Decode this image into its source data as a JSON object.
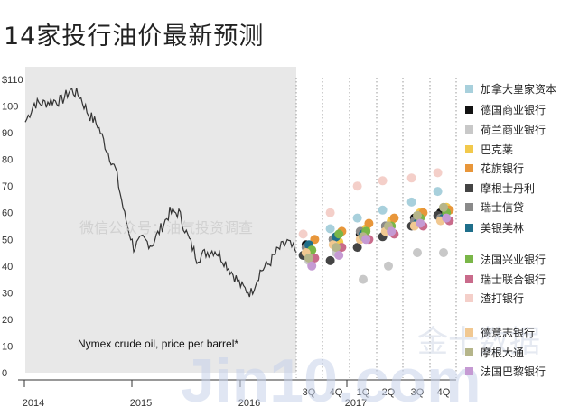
{
  "title": "14家投行油价最新预测",
  "watermarks": {
    "wechat": "微信公众号：油气投资调查",
    "jin10": "Jin10.com",
    "jin10_cn": "金十数据"
  },
  "chart_data": {
    "type": "scatter",
    "annotation": "Nymex crude oil, price per barrel*",
    "ylim": [
      0,
      110
    ],
    "yticks": [
      "0",
      "10",
      "20",
      "30",
      "40",
      "50",
      "60",
      "70",
      "80",
      "90",
      "100",
      "$110"
    ],
    "year_ticks": [
      "2014",
      "2015",
      "2016",
      "2017"
    ],
    "quarter_ticks": [
      "3Q",
      "4Q",
      "1Q",
      "2Q",
      "3Q",
      "4Q"
    ],
    "history": {
      "start": "2014-01",
      "end": "2016-07",
      "monthly_prices": [
        94,
        101,
        101,
        102,
        102,
        106,
        104,
        97,
        93,
        84,
        76,
        59,
        47,
        50,
        48,
        54,
        60,
        60,
        51,
        43,
        45,
        46,
        42,
        37,
        32,
        30,
        38,
        41,
        46,
        49,
        45
      ]
    },
    "series": [
      {
        "name": "加拿大皇家资本",
        "color": "#a8d0dc",
        "values": [
          44,
          54,
          58,
          61,
          64,
          68
        ]
      },
      {
        "name": "德国商业银行",
        "color": "#111111",
        "values": [
          48,
          50,
          52,
          55,
          58,
          60
        ]
      },
      {
        "name": "荷兰商业银行",
        "color": "#c8c8c8",
        "values": [
          42,
          45,
          35,
          40,
          45,
          45
        ]
      },
      {
        "name": "巴克莱",
        "color": "#f2c94c",
        "values": [
          46,
          49,
          54,
          57,
          60,
          62
        ]
      },
      {
        "name": "花旗银行",
        "color": "#e8963a",
        "values": [
          50,
          53,
          56,
          58,
          60,
          61
        ]
      },
      {
        "name": "摩根士丹利",
        "color": "#444444",
        "values": [
          44,
          42,
          47,
          51,
          55,
          59
        ]
      },
      {
        "name": "瑞士信贷",
        "color": "#8a8a8a",
        "values": [
          47,
          50,
          53,
          55,
          57,
          58
        ]
      },
      {
        "name": "美银美林",
        "color": "#1f6f8b",
        "values": [
          48,
          51,
          52,
          54,
          56,
          58
        ]
      },
      {
        "name": "法国兴业银行",
        "color": "#7ab648",
        "values": [
          46,
          52,
          53,
          55,
          58,
          60
        ]
      },
      {
        "name": "瑞士联合银行",
        "color": "#c96b8b",
        "values": [
          43,
          47,
          50,
          52,
          55,
          57
        ]
      },
      {
        "name": "渣打银行",
        "color": "#f4cfc9",
        "values": [
          52,
          60,
          70,
          72,
          73,
          75
        ]
      },
      {
        "name": "德意志银行",
        "color": "#f1c891",
        "values": [
          45,
          48,
          50,
          53,
          55,
          57
        ]
      },
      {
        "name": "摩根大通",
        "color": "#b5b58a",
        "values": [
          43,
          47,
          51,
          55,
          59,
          62
        ]
      },
      {
        "name": "法国巴黎银行",
        "color": "#c59ad3",
        "values": [
          40,
          44,
          50,
          53,
          56,
          58
        ]
      }
    ]
  }
}
